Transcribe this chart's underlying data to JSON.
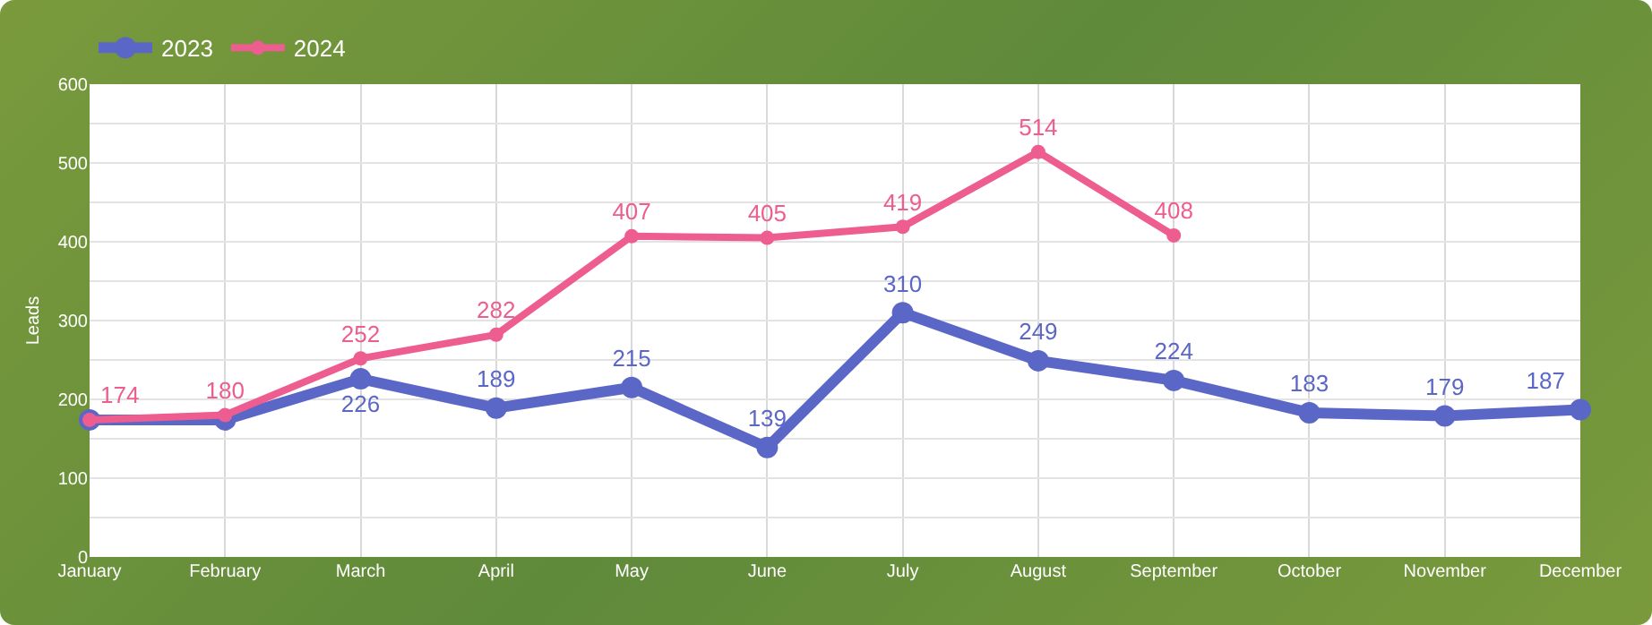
{
  "chart_data": {
    "type": "line",
    "ylabel": "Leads",
    "categories": [
      "January",
      "February",
      "March",
      "April",
      "May",
      "June",
      "July",
      "August",
      "September",
      "October",
      "November",
      "December"
    ],
    "series": [
      {
        "name": "2023",
        "color": "#5b67c6",
        "values": [
          174,
          174,
          226,
          189,
          215,
          139,
          310,
          249,
          224,
          183,
          179,
          187
        ],
        "value_labels": [
          null,
          null,
          "226",
          "189",
          "215",
          "139",
          "310",
          "249",
          "224",
          "183",
          "179",
          "187"
        ]
      },
      {
        "name": "2024",
        "color": "#ee5d8f",
        "values": [
          174,
          180,
          252,
          282,
          407,
          405,
          419,
          514,
          408,
          null,
          null,
          null
        ],
        "value_labels": [
          "174",
          "180",
          "252",
          "282",
          "407",
          "405",
          "419",
          "514",
          "408",
          null,
          null,
          null
        ]
      }
    ],
    "ylim": [
      0,
      600
    ],
    "yticks": [
      0,
      {
        "value": 50,
        "label": null
      },
      100,
      {
        "value": 150,
        "label": null
      },
      200,
      {
        "value": 250,
        "label": null
      },
      300,
      {
        "value": 350,
        "label": null
      },
      400,
      {
        "value": 450,
        "label": null
      },
      500,
      {
        "value": 550,
        "label": null
      },
      600
    ],
    "grid": true,
    "legend": "top left",
    "marker": "circle",
    "line_style": "solid"
  }
}
